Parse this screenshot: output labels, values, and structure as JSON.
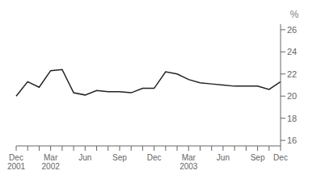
{
  "chart_data": {
    "type": "line",
    "y_label": "%",
    "categories": [
      "Dec\n2001",
      null,
      null,
      "Mar\n2002",
      null,
      null,
      "Jun",
      null,
      null,
      "Sep",
      null,
      null,
      "Dec",
      null,
      null,
      "Mar\n2003",
      null,
      null,
      "Jun",
      null,
      null,
      "Sep",
      null,
      "Dec"
    ],
    "values": [
      20.0,
      21.3,
      20.8,
      22.3,
      22.4,
      20.3,
      20.1,
      20.5,
      20.4,
      20.4,
      20.3,
      20.7,
      20.7,
      22.2,
      22.0,
      21.5,
      21.2,
      21.1,
      21.0,
      20.9,
      20.9,
      20.9,
      20.6,
      21.3
    ],
    "color": "#222222",
    "ylim": [
      15.5,
      26.5
    ],
    "yticks": [
      16,
      18,
      20,
      22,
      24,
      26
    ],
    "grid": false
  }
}
